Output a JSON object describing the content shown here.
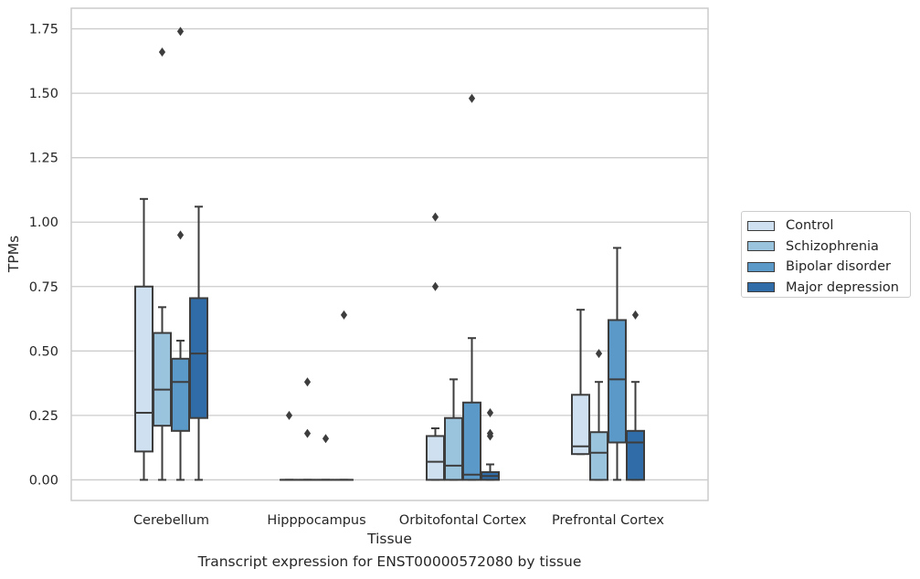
{
  "chart_data": {
    "type": "box",
    "xlabel": "Tissue",
    "ylabel": "TPMs",
    "caption": "Transcript expression for ENST00000572080 by tissue",
    "ylim": [
      -0.08,
      1.83
    ],
    "yticks": [
      "0.00",
      "0.25",
      "0.50",
      "0.75",
      "1.00",
      "1.25",
      "1.50",
      "1.75"
    ],
    "ytick_values": [
      0,
      0.25,
      0.5,
      0.75,
      1.0,
      1.25,
      1.5,
      1.75
    ],
    "grid": "horizontal",
    "legend_position": "right",
    "categories": [
      "Cerebellum",
      "Hipppocampus",
      "Orbitofontal Cortex",
      "Prefrontal Cortex"
    ],
    "series": [
      {
        "name": "Control",
        "color": "#cfe0f0",
        "boxes": [
          {
            "whisker_low": 0.0,
            "q1": 0.11,
            "median": 0.26,
            "q3": 0.75,
            "whisker_high": 1.09,
            "outliers": []
          },
          {
            "whisker_low": 0.0,
            "q1": 0.0,
            "median": 0.0,
            "q3": 0.0,
            "whisker_high": 0.0,
            "outliers": [
              0.25
            ]
          },
          {
            "whisker_low": 0.0,
            "q1": 0.0,
            "median": 0.07,
            "q3": 0.17,
            "whisker_high": 0.2,
            "outliers": [
              0.75,
              1.02
            ]
          },
          {
            "whisker_low": 0.1,
            "q1": 0.1,
            "median": 0.13,
            "q3": 0.33,
            "whisker_high": 0.66,
            "outliers": []
          }
        ]
      },
      {
        "name": "Schizophrenia",
        "color": "#9ac3de",
        "boxes": [
          {
            "whisker_low": 0.0,
            "q1": 0.21,
            "median": 0.35,
            "q3": 0.57,
            "whisker_high": 0.67,
            "outliers": [
              1.66
            ]
          },
          {
            "whisker_low": 0.0,
            "q1": 0.0,
            "median": 0.0,
            "q3": 0.0,
            "whisker_high": 0.0,
            "outliers": [
              0.18,
              0.38
            ]
          },
          {
            "whisker_low": 0.0,
            "q1": 0.0,
            "median": 0.055,
            "q3": 0.24,
            "whisker_high": 0.39,
            "outliers": []
          },
          {
            "whisker_low": 0.0,
            "q1": 0.0,
            "median": 0.105,
            "q3": 0.185,
            "whisker_high": 0.38,
            "outliers": [
              0.49
            ]
          }
        ]
      },
      {
        "name": "Bipolar disorder",
        "color": "#5b9ac8",
        "boxes": [
          {
            "whisker_low": 0.0,
            "q1": 0.19,
            "median": 0.38,
            "q3": 0.47,
            "whisker_high": 0.54,
            "outliers": [
              0.95,
              1.74
            ]
          },
          {
            "whisker_low": 0.0,
            "q1": 0.0,
            "median": 0.0,
            "q3": 0.0,
            "whisker_high": 0.0,
            "outliers": [
              0.16
            ]
          },
          {
            "whisker_low": 0.0,
            "q1": 0.0,
            "median": 0.02,
            "q3": 0.3,
            "whisker_high": 0.55,
            "outliers": [
              1.48
            ]
          },
          {
            "whisker_low": 0.0,
            "q1": 0.145,
            "median": 0.39,
            "q3": 0.62,
            "whisker_high": 0.9,
            "outliers": []
          }
        ]
      },
      {
        "name": "Major depression",
        "color": "#2f6ca8",
        "boxes": [
          {
            "whisker_low": 0.0,
            "q1": 0.24,
            "median": 0.49,
            "q3": 0.705,
            "whisker_high": 1.06,
            "outliers": []
          },
          {
            "whisker_low": 0.0,
            "q1": 0.0,
            "median": 0.0,
            "q3": 0.0,
            "whisker_high": 0.0,
            "outliers": [
              0.64
            ]
          },
          {
            "whisker_low": 0.0,
            "q1": 0.0,
            "median": 0.015,
            "q3": 0.03,
            "whisker_high": 0.06,
            "outliers": [
              0.17,
              0.18,
              0.26
            ]
          },
          {
            "whisker_low": 0.0,
            "q1": 0.0,
            "median": 0.145,
            "q3": 0.19,
            "whisker_high": 0.38,
            "outliers": [
              0.64
            ]
          }
        ]
      }
    ]
  }
}
